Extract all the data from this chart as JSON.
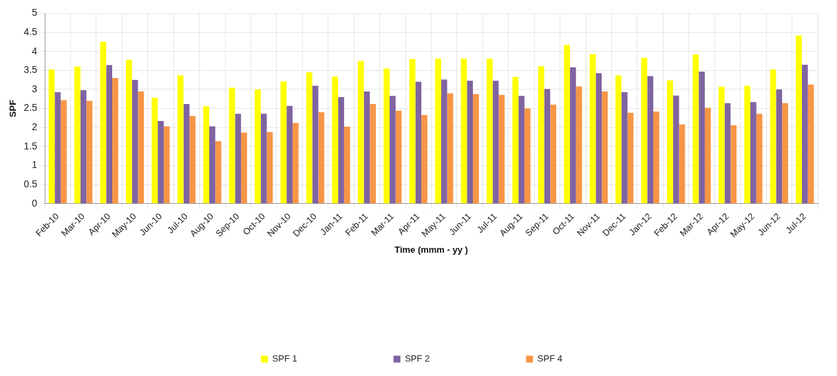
{
  "chart_data": {
    "type": "bar",
    "xlabel": "Time (mmm - yy )",
    "ylabel": "SPF",
    "categories": [
      "Feb-10",
      "Mar-10",
      "Apr-10",
      "May-10",
      "Jun-10",
      "Jul-10",
      "Aug-10",
      "Sep-10",
      "Oct-10",
      "Nov-10",
      "Dec-10",
      "Jan-11",
      "Feb-11",
      "Mar-11",
      "Apr-11",
      "May-11",
      "Jun-11",
      "Jul-11",
      "Aug-11",
      "Sep-11",
      "Oct-11",
      "Nov-11",
      "Dec-11",
      "Jan-12",
      "Feb-12",
      "Mar-12",
      "Apr-12",
      "May-12",
      "Jun-12",
      "Jul-12"
    ],
    "series": [
      {
        "name": "SPF 1",
        "color": "#ffff00",
        "values": [
          3.53,
          3.6,
          4.25,
          3.78,
          2.78,
          3.37,
          2.56,
          3.05,
          3.0,
          3.21,
          3.45,
          3.34,
          3.75,
          3.55,
          3.8,
          3.81,
          3.81,
          3.81,
          3.33,
          3.61,
          4.17,
          3.93,
          3.37,
          3.83,
          3.24,
          3.92,
          3.07,
          3.1,
          3.53,
          4.42
        ]
      },
      {
        "name": "SPF 2",
        "color": "#8064a2",
        "values": [
          2.93,
          2.98,
          3.64,
          3.25,
          2.17,
          2.62,
          2.03,
          2.36,
          2.36,
          2.57,
          3.1,
          2.8,
          2.95,
          2.83,
          3.2,
          3.26,
          3.23,
          3.23,
          2.83,
          3.01,
          3.58,
          3.43,
          2.93,
          3.35,
          2.84,
          3.47,
          2.64,
          2.67,
          3.0,
          3.65
        ]
      },
      {
        "name": "SPF 4",
        "color": "#f79646",
        "values": [
          2.72,
          2.7,
          3.3,
          2.95,
          2.03,
          2.3,
          1.64,
          1.87,
          1.88,
          2.12,
          2.4,
          2.02,
          2.62,
          2.44,
          2.33,
          2.9,
          2.88,
          2.86,
          2.5,
          2.6,
          3.08,
          2.95,
          2.39,
          2.42,
          2.08,
          2.52,
          2.06,
          2.36,
          2.64,
          3.13
        ]
      }
    ],
    "ylim": [
      0,
      5
    ],
    "yticks": [
      0,
      0.5,
      1,
      1.5,
      2,
      2.5,
      3,
      3.5,
      4,
      4.5,
      5
    ],
    "grid": true,
    "legend": "bottom"
  }
}
